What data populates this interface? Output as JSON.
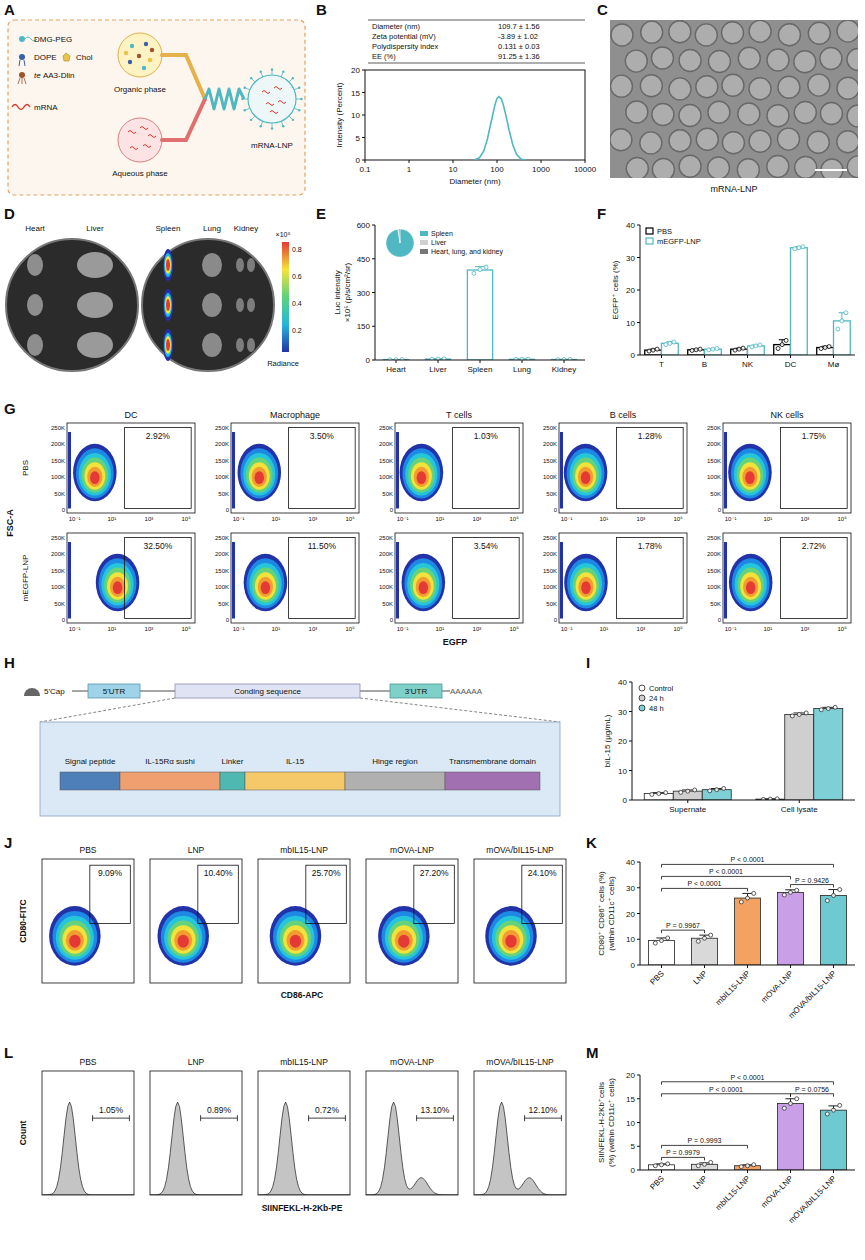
{
  "figure": {
    "panel_letters": [
      "A",
      "B",
      "C",
      "D",
      "E",
      "F",
      "G",
      "H",
      "I",
      "J",
      "K",
      "L",
      "M"
    ]
  },
  "panel_A": {
    "lipids": [
      "DMG-PEG",
      "DOPE",
      "Chol",
      "te AA3-Dlin"
    ],
    "cargo": "mRNA",
    "organic_phase": "Organic phase",
    "aqueous_phase": "Aqueous phase",
    "product": "mRNA-LNP"
  },
  "panel_B_table": {
    "rows": [
      [
        "Diameter (nm)",
        "109.7 ± 1.56"
      ],
      [
        "Zeta potential (mV)",
        "-3.89 ± 1.02"
      ],
      [
        "Polydispersity index",
        "0.131 ± 0.03"
      ],
      [
        "EE (%)",
        "91.25 ± 1.36"
      ]
    ]
  },
  "panel_C": {
    "caption": "mRNA-LNP"
  },
  "panel_D": {
    "organs": [
      "Heart",
      "Liver",
      "Spleen",
      "Lung",
      "Kidney"
    ],
    "colorbar_ticks": [
      "0.8",
      "0.6",
      "0.4",
      "0.2"
    ],
    "colorbar_scale": "×10⁸",
    "colorbar_title": "Radiance"
  },
  "panel_G": {
    "columns": [
      "DC",
      "Macrophage",
      "T cells",
      "B cells",
      "NK cells"
    ],
    "rows": [
      "PBS",
      "mEGFP-LNP"
    ],
    "gates": [
      [
        "2.92%",
        "3.50%",
        "1.03%",
        "1.28%",
        "1.75%"
      ],
      [
        "32.50%",
        "11.50%",
        "3.54%",
        "1.78%",
        "2.72%"
      ]
    ],
    "y_label": "FSC-A",
    "x_label": "EGFP",
    "y_ticks": [
      "0",
      "50K",
      "100K",
      "150K",
      "200K",
      "250K"
    ],
    "x_ticks": [
      "10⁻¹",
      "10¹",
      "10³",
      "10⁵"
    ]
  },
  "panel_H": {
    "mrna_parts": [
      "5'Cap",
      "5'UTR",
      "Conding sequence",
      "3'UTR",
      "AAAAAA"
    ],
    "domains": [
      "Signal peptide",
      "IL-15Rα sushi",
      "Linker",
      "IL-15",
      "Hinge region",
      "Transmembrane domain"
    ]
  },
  "panel_J": {
    "groups": [
      "PBS",
      "LNP",
      "mbIL15-LNP",
      "mOVA-LNP",
      "mOVA/bIL15-LNP"
    ],
    "gates": [
      "9.09%",
      "10.40%",
      "25.70%",
      "27.20%",
      "24.10%"
    ],
    "y_label": "CD80-FITC",
    "x_label": "CD86-APC"
  },
  "panel_L": {
    "groups": [
      "PBS",
      "LNP",
      "mbIL15-LNP",
      "mOVA-LNP",
      "mOVA/bIL15-LNP"
    ],
    "gates": [
      "1.05%",
      "0.89%",
      "0.72%",
      "13.10%",
      "12.10%"
    ],
    "x_label": "SIINFEKL-H-2Kb-PE",
    "y_label": "Count"
  },
  "chart_data": [
    {
      "type": "line",
      "x_label": "Diameter (nm)",
      "y_label": "Intensity (Percent)",
      "x": [
        30,
        40,
        50,
        60,
        70,
        80,
        90,
        100,
        110,
        125,
        140,
        160,
        190,
        230,
        280,
        350,
        450
      ],
      "values": [
        0,
        0.5,
        2,
        4.5,
        7.5,
        10,
        12.3,
        13.7,
        14.1,
        13.6,
        12.2,
        9.8,
        6.5,
        3.3,
        1.2,
        0.2,
        0
      ],
      "color": "#4fb8c2",
      "log": "x",
      "xlim": [
        0.1,
        10000
      ],
      "xticks": [
        0.1,
        1,
        10,
        100,
        1000,
        10000
      ],
      "ylim": [
        0,
        20
      ],
      "yticks": [
        0,
        5,
        10,
        15,
        20
      ]
    },
    {
      "type": "bar",
      "y_label": [
        "Luc intensity",
        "×10⁵ (p/s/cm²/sr)"
      ],
      "categories": [
        "Heart",
        "Liver",
        "Spleen",
        "Lung",
        "Kidney"
      ],
      "values": [
        1.5,
        4,
        400,
        3,
        2
      ],
      "errors": [
        0.5,
        1.5,
        15,
        1,
        0.8
      ],
      "points": [
        [
          1.2,
          1.5,
          1.8
        ],
        [
          2.8,
          4,
          5.2
        ],
        [
          385,
          402,
          413
        ],
        [
          2.5,
          3,
          3.5
        ],
        [
          1.5,
          2,
          2.5
        ]
      ],
      "color": "#4fb8c2",
      "ylim": [
        0,
        600
      ],
      "yticks": [
        0,
        150,
        300,
        450,
        600
      ]
    },
    {
      "type": "pie",
      "categories": [
        "Spleen",
        "Liver",
        "Heart, lung, and kidney"
      ],
      "values": [
        97.5,
        1.5,
        1
      ],
      "colors": [
        "#4fb8c2",
        "#d0d0d0",
        "#777777"
      ],
      "legend": "right"
    },
    {
      "type": "bar",
      "y_label": "EGFP⁺ cells (%)",
      "categories": [
        "T",
        "B",
        "NK",
        "DC",
        "Mø"
      ],
      "series": [
        {
          "name": "PBS",
          "color": "#000000",
          "values": [
            1.5,
            1.6,
            1.8,
            3.2,
            2.3
          ],
          "errors": [
            0.3,
            0.2,
            0.3,
            1.5,
            0.4
          ],
          "points": [
            [
              1.2,
              1.5,
              1.8
            ],
            [
              1.4,
              1.6,
              1.8
            ],
            [
              1.5,
              1.8,
              2.1
            ],
            [
              2,
              3.2,
              4.5
            ],
            [
              2,
              2.3,
              2.6
            ]
          ]
        },
        {
          "name": "mEGFP-LNP",
          "color": "#4fb8c2",
          "values": [
            3.6,
            1.8,
            2.8,
            33,
            10.5
          ],
          "errors": [
            0.5,
            0.2,
            0.3,
            0.4,
            2.5
          ],
          "points": [
            [
              3.2,
              3.6,
              4
            ],
            [
              1.6,
              1.8,
              2
            ],
            [
              2.5,
              2.8,
              3.1
            ],
            [
              32.7,
              33,
              33.3
            ],
            [
              8,
              10.5,
              13
            ]
          ]
        }
      ],
      "legend": "top-left",
      "ylim": [
        0,
        40
      ],
      "yticks": [
        0,
        10,
        20,
        30,
        40
      ]
    },
    {
      "type": "bar",
      "y_label": "bIL-15 (μg/mL)",
      "categories": [
        "Supernate",
        "Cell lysate"
      ],
      "series": [
        {
          "name": "Control",
          "color": "#ffffff",
          "values": [
            2.2,
            0.3
          ],
          "errors": [
            0.3,
            0.1
          ],
          "points": [
            [
              1.9,
              2.2,
              2.5
            ],
            [
              0.2,
              0.3,
              0.4
            ]
          ]
        },
        {
          "name": "24 h",
          "color": "#cfcfcf",
          "values": [
            3,
            29
          ],
          "errors": [
            0.4,
            0.5
          ],
          "points": [
            [
              2.6,
              3,
              3.4
            ],
            [
              28.5,
              29,
              29.5
            ]
          ]
        },
        {
          "name": "48 h",
          "color": "#7fd0d6",
          "values": [
            3.5,
            31
          ],
          "errors": [
            0.4,
            0.4
          ],
          "points": [
            [
              3.1,
              3.5,
              3.9
            ],
            [
              30.6,
              31,
              31.4
            ]
          ]
        }
      ],
      "legend": "top-left",
      "ylim": [
        0,
        40
      ],
      "yticks": [
        0,
        10,
        20,
        30,
        40
      ]
    },
    {
      "type": "bar",
      "y_label": [
        "CD80⁺ CD86⁺ cells (%)",
        "(within CD11c⁺ cells)"
      ],
      "categories": [
        "PBS",
        "LNP",
        "mbIL15-LNP",
        "mOVA-LNP",
        "mOVA/bIL15-LNP"
      ],
      "values": [
        9.5,
        10.4,
        26,
        28.2,
        27
      ],
      "errors": [
        1,
        1.2,
        1.8,
        1,
        2.3
      ],
      "points": [
        [
          8.5,
          9.5,
          10.5
        ],
        [
          9.2,
          10.4,
          11.6
        ],
        [
          24.5,
          26,
          27.8
        ],
        [
          27.2,
          28.2,
          29
        ],
        [
          25,
          27,
          29.3
        ]
      ],
      "colors": [
        "#ffffff",
        "#d9d9d9",
        "#f4a261",
        "#c9a0e8",
        "#6ecad0"
      ],
      "ylim": [
        0,
        40
      ],
      "yticks": [
        0,
        10,
        20,
        30,
        40
      ],
      "annotations": [
        {
          "text": "P = 0.9967",
          "between": [
            "PBS",
            "LNP"
          ]
        },
        {
          "text": "P = 0.9426",
          "between": [
            "mOVA-LNP",
            "mOVA/bIL15-LNP"
          ]
        },
        {
          "text": "P < 0.0001",
          "between": [
            "PBS",
            "mbIL15-LNP"
          ]
        },
        {
          "text": "P < 0.0001",
          "between": [
            "PBS",
            "mOVA-LNP"
          ]
        },
        {
          "text": "P < 0.0001",
          "between": [
            "PBS",
            "mOVA/bIL15-LNP"
          ]
        }
      ]
    },
    {
      "type": "bar",
      "y_label": [
        "SIINFEKL-H-2Kb⁺cells",
        "(%) (within CD11c⁺ cells)"
      ],
      "categories": [
        "PBS",
        "LNP",
        "mbIL15-LNP",
        "mOVA-LNP",
        "mOVA/bIL15-LNP"
      ],
      "values": [
        1.1,
        1.2,
        0.9,
        14,
        12.6
      ],
      "errors": [
        0.2,
        0.3,
        0.2,
        1,
        0.9
      ],
      "points": [
        [
          0.9,
          1.1,
          1.3
        ],
        [
          0.9,
          1.2,
          1.6
        ],
        [
          0.7,
          0.9,
          1.1
        ],
        [
          13,
          14,
          15
        ],
        [
          11.8,
          12.6,
          13.6
        ]
      ],
      "colors": [
        "#ffffff",
        "#d9d9d9",
        "#f4a261",
        "#c9a0e8",
        "#6ecad0"
      ],
      "ylim": [
        0,
        20
      ],
      "yticks": [
        0,
        5,
        10,
        15,
        20
      ],
      "annotations": [
        {
          "text": "P = 0.9979",
          "between": [
            "PBS",
            "LNP"
          ]
        },
        {
          "text": "P = 0.9993",
          "between": [
            "PBS",
            "mbIL15-LNP"
          ]
        },
        {
          "text": "P = 0.0756",
          "between": [
            "mOVA-LNP",
            "mOVA/bIL15-LNP"
          ]
        },
        {
          "text": "P < 0.0001",
          "between": [
            "PBS",
            "mOVA-LNP"
          ]
        },
        {
          "text": "P < 0.0001",
          "between": [
            "PBS",
            "mOVA/bIL15-LNP"
          ]
        }
      ]
    }
  ]
}
